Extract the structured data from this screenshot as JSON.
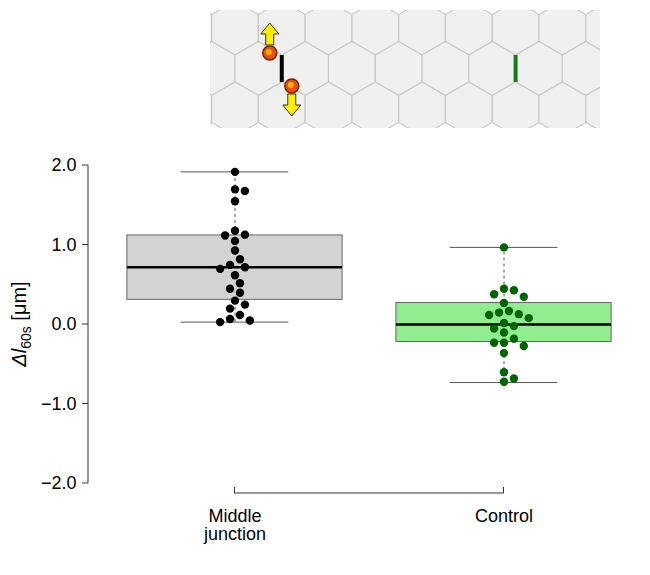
{
  "chart_data": {
    "type": "box",
    "ylabel": "Δl60s [μm]",
    "ylim": [
      -2,
      2
    ],
    "yticks": [
      -2,
      -1,
      0,
      1,
      2
    ],
    "categories": [
      "Middle junction",
      "Control"
    ],
    "boxes": [
      {
        "fill": "#d3d3d3",
        "point_color": "#000000",
        "q1": 0.31,
        "median": 0.72,
        "q3": 1.12,
        "whisker_low": 0.03,
        "whisker_high": 1.92,
        "values": [
          1.92,
          1.7,
          1.68,
          1.55,
          1.18,
          1.13,
          1.12,
          1.05,
          0.93,
          0.82,
          0.75,
          0.72,
          0.7,
          0.62,
          0.52,
          0.45,
          0.4,
          0.3,
          0.25,
          0.2,
          0.12,
          0.07,
          0.05,
          0.03
        ]
      },
      {
        "fill": "#90ee90",
        "point_color": "#006400",
        "q1": -0.22,
        "median": 0.0,
        "q3": 0.27,
        "whisker_low": -0.73,
        "whisker_high": 0.97,
        "values": [
          0.97,
          0.45,
          0.43,
          0.38,
          0.35,
          0.27,
          0.17,
          0.15,
          0.13,
          0.12,
          0.08,
          0.02,
          -0.02,
          -0.05,
          -0.1,
          -0.18,
          -0.23,
          -0.23,
          -0.27,
          -0.36,
          -0.6,
          -0.68,
          -0.72
        ]
      }
    ]
  }
}
